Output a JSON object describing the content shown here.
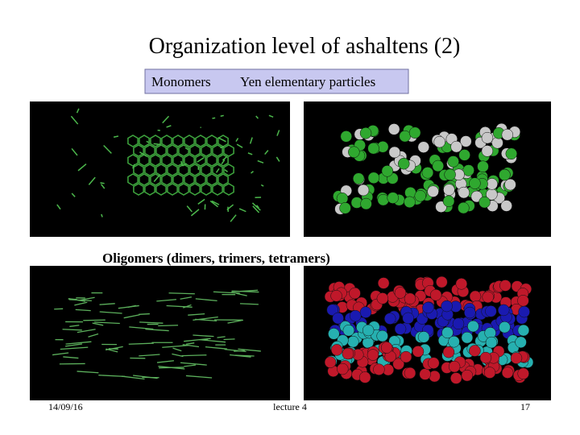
{
  "header": {
    "title": "Organization level of ashaltens (2)"
  },
  "legend_box": {
    "left": "Monomers",
    "right": "Yen elementary particles"
  },
  "section": {
    "label": "Oligomers (dimers, trimers, tetramers)"
  },
  "footer": {
    "date": "14/09/16",
    "center": "lecture 4",
    "page": "17"
  }
}
